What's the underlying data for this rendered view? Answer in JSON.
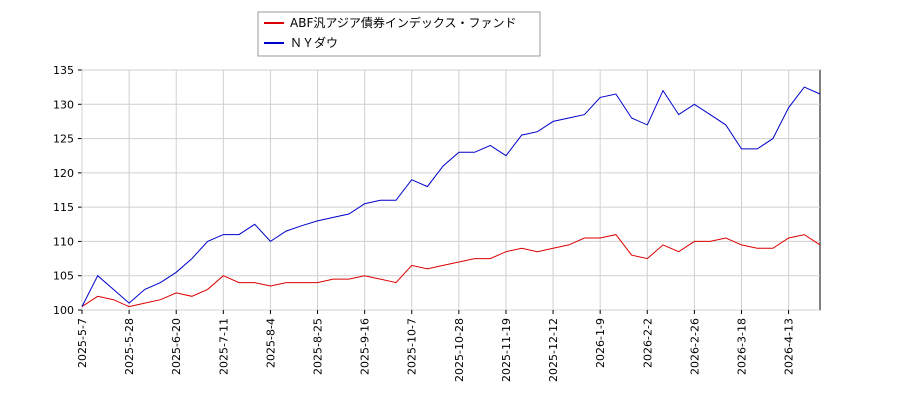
{
  "chart_data": {
    "type": "line",
    "categories": [
      "2025-5-7",
      null,
      null,
      "2025-5-28",
      null,
      null,
      "2025-6-20",
      null,
      null,
      "2025-7-11",
      null,
      null,
      "2025-8-4",
      null,
      null,
      "2025-8-25",
      null,
      null,
      "2025-9-16",
      null,
      null,
      "2025-10-7",
      null,
      null,
      "2025-10-28",
      null,
      null,
      "2025-11-19",
      null,
      null,
      "2025-12-12",
      null,
      null,
      "2026-1-9",
      null,
      null,
      "2026-2-2",
      null,
      null,
      "2026-2-26",
      null,
      null,
      "2026-3-18",
      null,
      null,
      "2026-4-13",
      null,
      null
    ],
    "series": [
      {
        "name": "ABF汎アジア債券インデックス・ファンド",
        "color": "#dd0000",
        "values": [
          100.5,
          102,
          101.5,
          100.5,
          101,
          101.5,
          102.5,
          102,
          103,
          105,
          104,
          104,
          103.5,
          104,
          104,
          104,
          104.5,
          104.5,
          105,
          104.5,
          104,
          106.5,
          106,
          106.5,
          107,
          107.5,
          107.5,
          108.5,
          109,
          108.5,
          109,
          109.5,
          110.5,
          110.5,
          111,
          108,
          107.5,
          109.5,
          108.5,
          110,
          110,
          110.5,
          109.5,
          109,
          109,
          110.5,
          111,
          109.5
        ]
      },
      {
        "name": "ＮＹダウ",
        "color": "#0000cc",
        "values": [
          100.5,
          105,
          103,
          101,
          103,
          104,
          105.5,
          107.5,
          110,
          111,
          111,
          112.5,
          110,
          111.5,
          112.3,
          113,
          113.5,
          114,
          115.5,
          116,
          116,
          119,
          118,
          121,
          123,
          123,
          124,
          122.5,
          125.5,
          126,
          127.5,
          128,
          128.5,
          131,
          131.5,
          128,
          127,
          132,
          128.5,
          130,
          128.5,
          127,
          123.5,
          123.5,
          125,
          129.5,
          132.5,
          131.5
        ]
      }
    ],
    "ylim": [
      100,
      135
    ],
    "yticks": [
      100,
      105,
      110,
      115,
      120,
      125,
      130,
      135
    ],
    "grid": true
  }
}
